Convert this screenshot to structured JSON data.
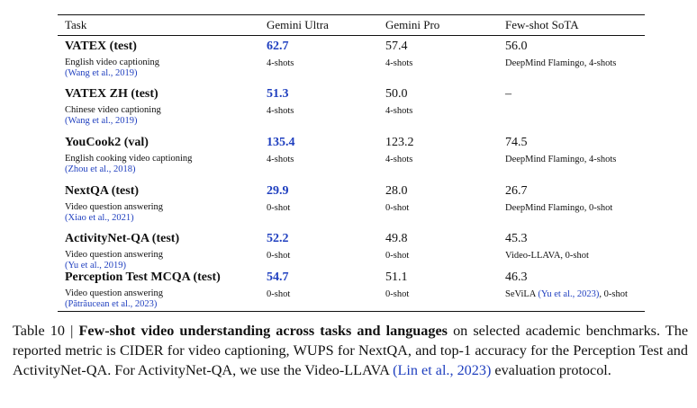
{
  "table": {
    "headers": [
      "Task",
      "Gemini Ultra",
      "Gemini Pro",
      "Few-shot SoTA"
    ],
    "rows": [
      {
        "task": "VATEX (test)",
        "desc": "English video captioning",
        "cite": "(Wang et al., 2019)",
        "ultra": "62.7",
        "ultra_shots": "4-shots",
        "pro": "57.4",
        "pro_shots": "4-shots",
        "sota": "56.0",
        "sota_note": "DeepMind Flamingo, 4-shots",
        "sota_note_cite": "",
        "sota_note_suffix": ""
      },
      {
        "task": "VATEX ZH (test)",
        "desc": "Chinese video captioning",
        "cite": "(Wang et al., 2019)",
        "ultra": "51.3",
        "ultra_shots": "4-shots",
        "pro": "50.0",
        "pro_shots": "4-shots",
        "sota": "–",
        "sota_note": "",
        "sota_note_cite": "",
        "sota_note_suffix": ""
      },
      {
        "task": "YouCook2 (val)",
        "desc": "English cooking video captioning",
        "cite": "(Zhou et al., 2018)",
        "ultra": "135.4",
        "ultra_shots": "4-shots",
        "pro": "123.2",
        "pro_shots": "4-shots",
        "sota": "74.5",
        "sota_note": "DeepMind Flamingo, 4-shots",
        "sota_note_cite": "",
        "sota_note_suffix": ""
      },
      {
        "task": "NextQA (test)",
        "desc": "Video question answering",
        "cite": "(Xiao et al., 2021)",
        "ultra": "29.9",
        "ultra_shots": "0-shot",
        "pro": "28.0",
        "pro_shots": "0-shot",
        "sota": "26.7",
        "sota_note": "DeepMind Flamingo, 0-shot",
        "sota_note_cite": "",
        "sota_note_suffix": ""
      },
      {
        "task": "ActivityNet-QA (test)",
        "desc": "Video question answering",
        "cite": "(Yu et al., 2019)",
        "ultra": "52.2",
        "ultra_shots": "0-shot",
        "pro": "49.8",
        "pro_shots": "0-shot",
        "sota": "45.3",
        "sota_note": "Video-LLAVA, 0-shot",
        "sota_note_cite": "",
        "sota_note_suffix": ""
      },
      {
        "task": "Perception Test MCQA (test)",
        "desc": "Video question answering",
        "cite": "(Pătrăucean et al., 2023)",
        "ultra": "54.7",
        "ultra_shots": "0-shot",
        "pro": "51.1",
        "pro_shots": "0-shot",
        "sota": "46.3",
        "sota_note": "SeViLA ",
        "sota_note_cite": "(Yu et al., 2023)",
        "sota_note_suffix": ", 0-shot"
      }
    ]
  },
  "caption": {
    "label": "Table 10 | ",
    "bold": "Few-shot video understanding across tasks and languages",
    "text1": " on selected academic benchmarks.  The reported metric is CIDER for video captioning, WUPS for NextQA, and top-1 accuracy for the Perception Test and ActivityNet-QA. For ActivityNet-QA, we use the Video-LLAVA ",
    "cite": "(Lin et al., 2023)",
    "text2": " evaluation protocol."
  }
}
